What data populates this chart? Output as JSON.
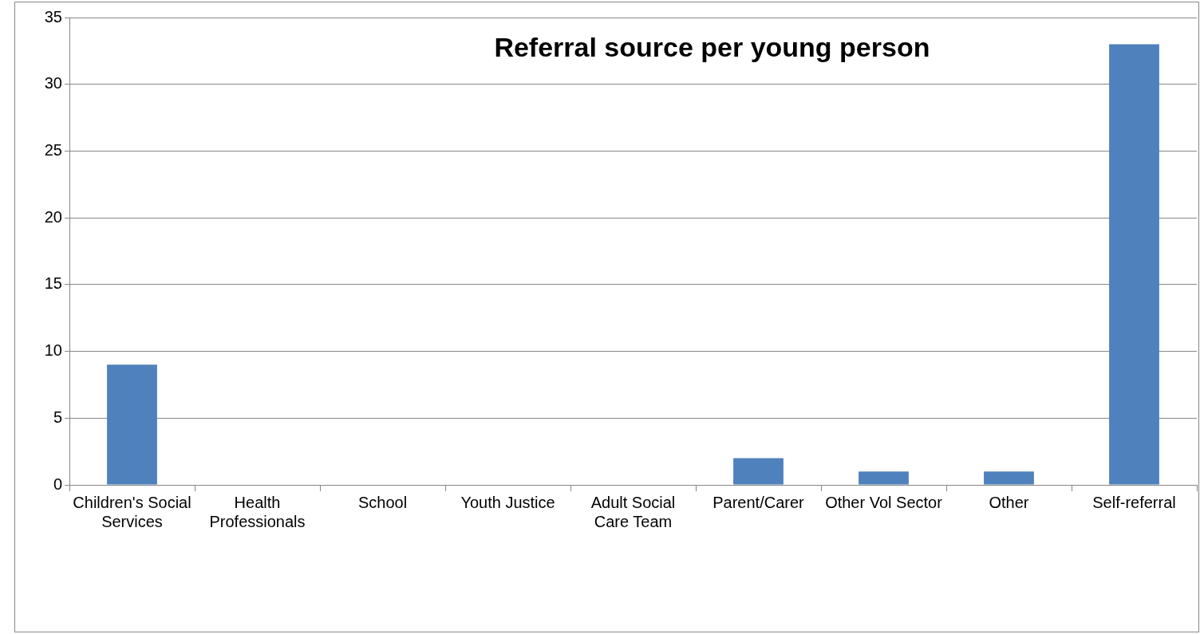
{
  "chart_data": {
    "type": "bar",
    "title": "Referral source per young person",
    "categories": [
      "Children's Social Services",
      "Health Professionals",
      "School",
      "Youth Justice",
      "Adult Social Care Team",
      "Parent/Carer",
      "Other Vol Sector",
      "Other",
      "Self-referral"
    ],
    "values": [
      9,
      0,
      0,
      0,
      0,
      2,
      1,
      1,
      33
    ],
    "color": "#4f81bd",
    "ylim": [
      0,
      35
    ],
    "yticks": [
      0,
      5,
      10,
      15,
      20,
      25,
      30,
      35
    ],
    "grid": "y",
    "legend": false
  }
}
